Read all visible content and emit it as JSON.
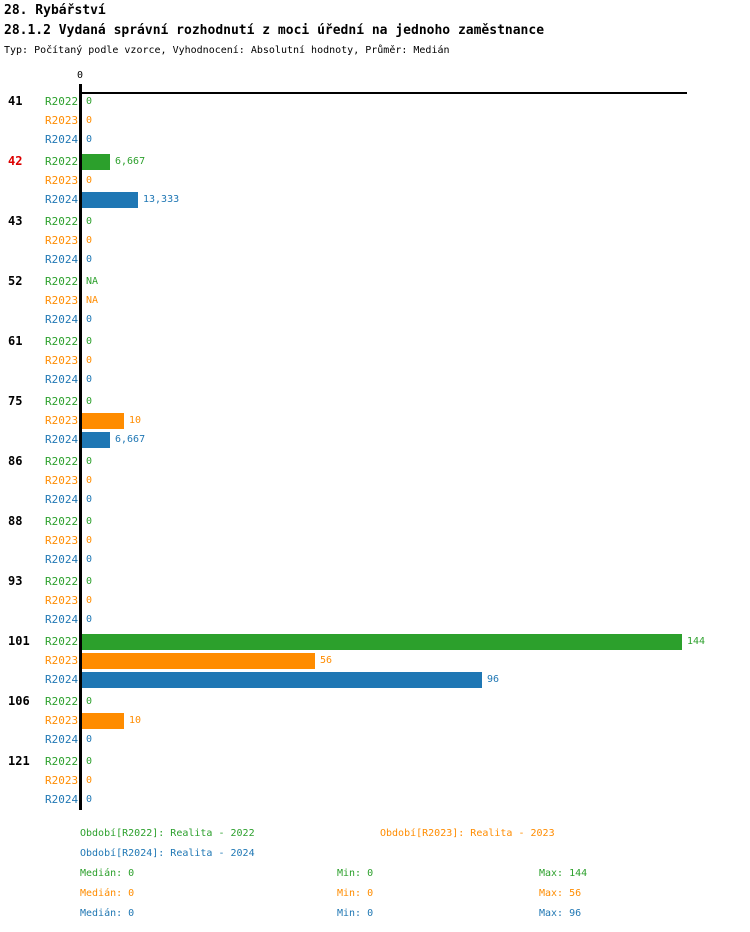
{
  "header": {
    "title": "28. Rybářství",
    "subtitle": "28.1.2 Vydaná správní rozhodnutí z moci úřední na jednoho zaměstnance",
    "meta": "Typ: Počítaný podle vzorce, Vyhodnocení: Absolutní hodnoty, Průměr: Medián"
  },
  "colors": {
    "r2022": "#2CA02C",
    "r2023": "#FF8C00",
    "r2024": "#1F77B4",
    "highlight": "#DD0000",
    "category_label": "#000000",
    "axis": "#000000"
  },
  "axis": {
    "zero_label": "0"
  },
  "chart_data": {
    "type": "bar",
    "orientation": "horizontal",
    "title": "28.1.2 Vydaná správní rozhodnutí z moci úřední na jednoho zaměstnance",
    "categories": [
      "41",
      "42",
      "43",
      "52",
      "61",
      "75",
      "86",
      "88",
      "93",
      "101",
      "106",
      "121"
    ],
    "highlighted_category": "42",
    "xlim": [
      0,
      144
    ],
    "x_ticks": [
      0
    ],
    "grid": false,
    "series": [
      {
        "name": "R2022",
        "color": "#2CA02C",
        "values": [
          0,
          6.667,
          0,
          null,
          0,
          0,
          0,
          0,
          0,
          144,
          0,
          0
        ],
        "value_labels": [
          "0",
          "6,667",
          "0",
          "NA",
          "0",
          "0",
          "0",
          "0",
          "0",
          "144",
          "0",
          "0"
        ],
        "median": 0,
        "min": 0,
        "max": 144
      },
      {
        "name": "R2023",
        "color": "#FF8C00",
        "values": [
          0,
          0,
          0,
          null,
          0,
          10,
          0,
          0,
          0,
          56,
          10,
          0
        ],
        "value_labels": [
          "0",
          "0",
          "0",
          "NA",
          "0",
          "10",
          "0",
          "0",
          "0",
          "56",
          "10",
          "0"
        ],
        "median": 0,
        "min": 0,
        "max": 56
      },
      {
        "name": "R2024",
        "color": "#1F77B4",
        "values": [
          0,
          13.333,
          0,
          0,
          0,
          6.667,
          0,
          0,
          0,
          96,
          0,
          0
        ],
        "value_labels": [
          "0",
          "13,333",
          "0",
          "0",
          "0",
          "6,667",
          "0",
          "0",
          "0",
          "96",
          "0",
          "0"
        ],
        "median": 0,
        "min": 0,
        "max": 96
      }
    ]
  },
  "legend": {
    "items": [
      {
        "label": "Období[R2022]: Realita - 2022"
      },
      {
        "label": "Období[R2023]: Realita - 2023"
      },
      {
        "label": "Období[R2024]: Realita - 2024"
      }
    ]
  },
  "stats_rows": [
    {
      "median": "Medián: 0",
      "min": "Min: 0",
      "max": "Max: 144"
    },
    {
      "median": "Medián: 0",
      "min": "Min: 0",
      "max": "Max: 56"
    },
    {
      "median": "Medián: 0",
      "min": "Min: 0",
      "max": "Max: 96"
    }
  ]
}
